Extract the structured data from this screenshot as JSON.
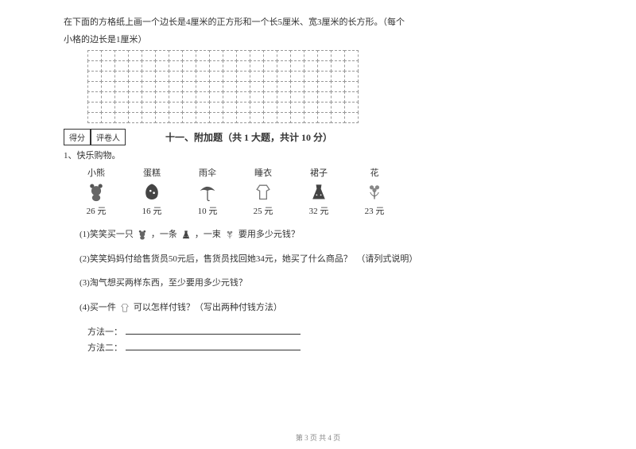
{
  "instruction_line1": "在下面的方格纸上画一个边长是4厘米的正方形和一个长5厘米、宽3厘米的长方形。（每个",
  "instruction_line2": "小格的边长是1厘米）",
  "grid": {
    "rows": 7,
    "cols": 20
  },
  "score_labels": {
    "score": "得分",
    "grader": "评卷人"
  },
  "section_title": "十一、附加题（共 1 大题，共计 10 分）",
  "q1_label": "1、快乐购物。",
  "items": [
    {
      "name": "小熊",
      "price": "26 元",
      "icon": "bear"
    },
    {
      "name": "蛋糕",
      "price": "16 元",
      "icon": "cake"
    },
    {
      "name": "雨伞",
      "price": "10 元",
      "icon": "umbrella"
    },
    {
      "name": "睡衣",
      "price": "25 元",
      "icon": "pajama"
    },
    {
      "name": "裙子",
      "price": "32 元",
      "icon": "dress"
    },
    {
      "name": "花",
      "price": "23 元",
      "icon": "flower"
    }
  ],
  "subq1": {
    "pre": "(1)笑笑买一只",
    "mid1": "，一条",
    "mid2": "，一束",
    "post": "要用多少元钱？"
  },
  "subq2": "(2)笑笑妈妈付给售货员50元后，售货员找回她34元，她买了什么商品？　（请列式说明）",
  "subq3": "(3)淘气想买两样东西，至少要用多少元钱？",
  "subq4": {
    "pre": "(4)买一件",
    "post": "可以怎样付钱？（写出两种付钱方法）"
  },
  "method1_label": "方法一：",
  "method2_label": "方法二：",
  "footer": "第 3 页 共 4 页",
  "colors": {
    "text": "#333333",
    "dashed": "#999999",
    "footer": "#888888"
  }
}
